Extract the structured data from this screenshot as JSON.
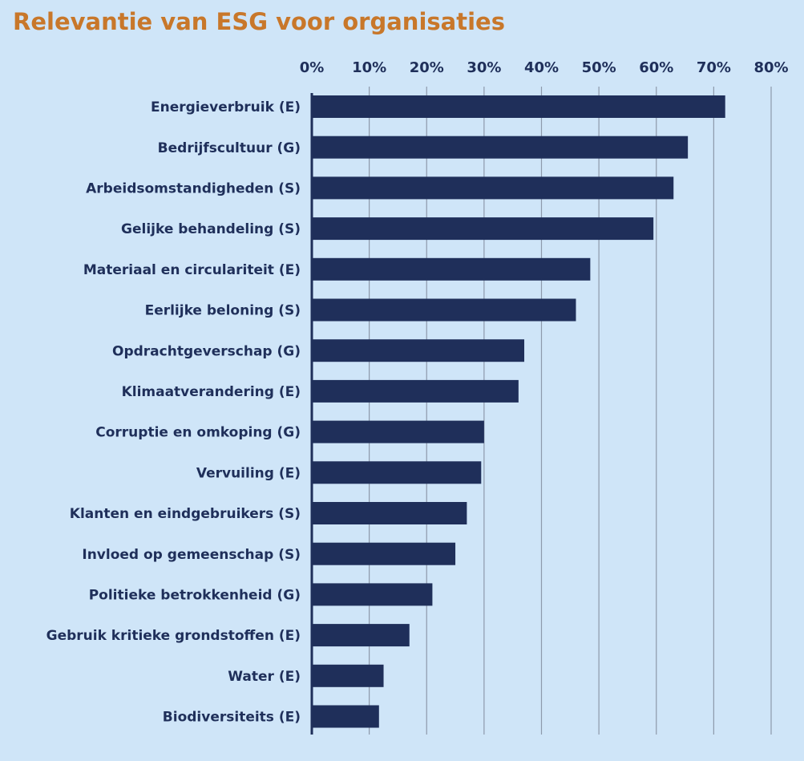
{
  "chart_data": {
    "type": "bar",
    "orientation": "horizontal",
    "title": "Relevantie van ESG voor organisaties",
    "xlabel": "",
    "ylabel": "",
    "xlim": [
      0,
      80
    ],
    "x_ticks": [
      "0%",
      "10%",
      "20%",
      "30%",
      "40%",
      "50%",
      "60%",
      "70%",
      "80%"
    ],
    "x_axis_position": "top",
    "grid": true,
    "categories": [
      "Energieverbruik (E)",
      "Bedrijfscultuur (G)",
      "Arbeidsomstandigheden (S)",
      "Gelijke behandeling (S)",
      "Materiaal en circulariteit (E)",
      "Eerlijke beloning (S)",
      "Opdrachtgeverschap (G)",
      "Klimaatverandering (E)",
      "Corruptie en omkoping (G)",
      "Vervuiling (E)",
      "Klanten en eindgebruikers (S)",
      "Invloed op gemeenschap (S)",
      "Politieke betrokkenheid (G)",
      "Gebruik kritieke grondstoffen (E)",
      "Water (E)",
      "Biodiversiteits (E)"
    ],
    "values": [
      72,
      65.5,
      63,
      59.5,
      48.5,
      46,
      37,
      36,
      30,
      29.5,
      27,
      25,
      21,
      17,
      12.5,
      11.7
    ],
    "colors": {
      "bar": "#1f2f5a",
      "background": "#cfe5f8",
      "grid": "#8d99ab",
      "title": "#c8772a",
      "text": "#1f2f5a"
    }
  }
}
